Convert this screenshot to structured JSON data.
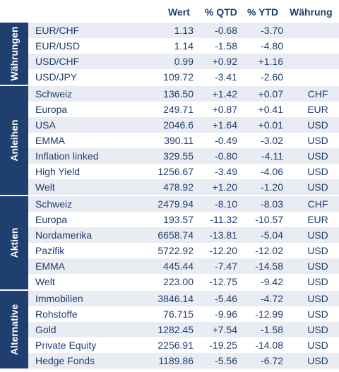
{
  "headers": [
    "Wert",
    "% QTD",
    "% YTD",
    "Währung"
  ],
  "groups": [
    {
      "label": "Währungen",
      "rows": [
        {
          "name": "EUR/CHF",
          "wert": "1.13",
          "qtd": "-0.68",
          "ytd": "-3.70",
          "cur": ""
        },
        {
          "name": "EUR/USD",
          "wert": "1.14",
          "qtd": "-1.58",
          "ytd": "-4.80",
          "cur": ""
        },
        {
          "name": "USD/CHF",
          "wert": "0.99",
          "qtd": "+0.92",
          "ytd": "+1.16",
          "cur": ""
        },
        {
          "name": "USD/JPY",
          "wert": "109.72",
          "qtd": "-3.41",
          "ytd": "-2.60",
          "cur": ""
        }
      ]
    },
    {
      "label": "Anleihen",
      "rows": [
        {
          "name": "Schweiz",
          "wert": "136.50",
          "qtd": "+1.42",
          "ytd": "+0.07",
          "cur": "CHF"
        },
        {
          "name": "Europa",
          "wert": "249.71",
          "qtd": "+0.87",
          "ytd": "+0.41",
          "cur": "EUR"
        },
        {
          "name": "USA",
          "wert": "2046.6",
          "qtd": "+1.64",
          "ytd": "+0.01",
          "cur": "USD"
        },
        {
          "name": "EMMA",
          "wert": "390.11",
          "qtd": "-0.49",
          "ytd": "-3.02",
          "cur": "USD"
        },
        {
          "name": "Inflation linked",
          "wert": "329.55",
          "qtd": "-0.80",
          "ytd": "-4.11",
          "cur": "USD"
        },
        {
          "name": "High Yield",
          "wert": "1256.67",
          "qtd": "-3.49",
          "ytd": "-4.06",
          "cur": "USD"
        },
        {
          "name": "Welt",
          "wert": "478.92",
          "qtd": "+1.20",
          "ytd": "-1.20",
          "cur": "USD"
        }
      ]
    },
    {
      "label": "Aktien",
      "rows": [
        {
          "name": "Schweiz",
          "wert": "2479.94",
          "qtd": "-8.10",
          "ytd": "-8.03",
          "cur": "CHF"
        },
        {
          "name": "Europa",
          "wert": "193.57",
          "qtd": "-11.32",
          "ytd": "-10.57",
          "cur": "EUR"
        },
        {
          "name": "Nordamerika",
          "wert": "6658.74",
          "qtd": "-13.81",
          "ytd": "-5.04",
          "cur": "USD"
        },
        {
          "name": "Pazifik",
          "wert": "5722.92",
          "qtd": "-12.20",
          "ytd": "-12.02",
          "cur": "USD"
        },
        {
          "name": "EMMA",
          "wert": "445.44",
          "qtd": "-7.47",
          "ytd": "-14.58",
          "cur": "USD"
        },
        {
          "name": "Welt",
          "wert": "223.00",
          "qtd": "-12.75",
          "ytd": "-9.42",
          "cur": "USD"
        }
      ]
    },
    {
      "label": "Alternative",
      "rows": [
        {
          "name": "Immobilien",
          "wert": "3846.14",
          "qtd": "-5.46",
          "ytd": "-4.72",
          "cur": "USD"
        },
        {
          "name": "Rohstoffe",
          "wert": "76.715",
          "qtd": "-9.96",
          "ytd": "-12.99",
          "cur": "USD"
        },
        {
          "name": "Gold",
          "wert": "1282.45",
          "qtd": "+7.54",
          "ytd": "-1.58",
          "cur": "USD"
        },
        {
          "name": "Private Equity",
          "wert": "2256.91",
          "qtd": "-19.25",
          "ytd": "-14.08",
          "cur": "USD"
        },
        {
          "name": "Hedge Fonds",
          "wert": "1189.86",
          "qtd": "-5.56",
          "ytd": "-6.72",
          "cur": "USD"
        }
      ]
    }
  ]
}
